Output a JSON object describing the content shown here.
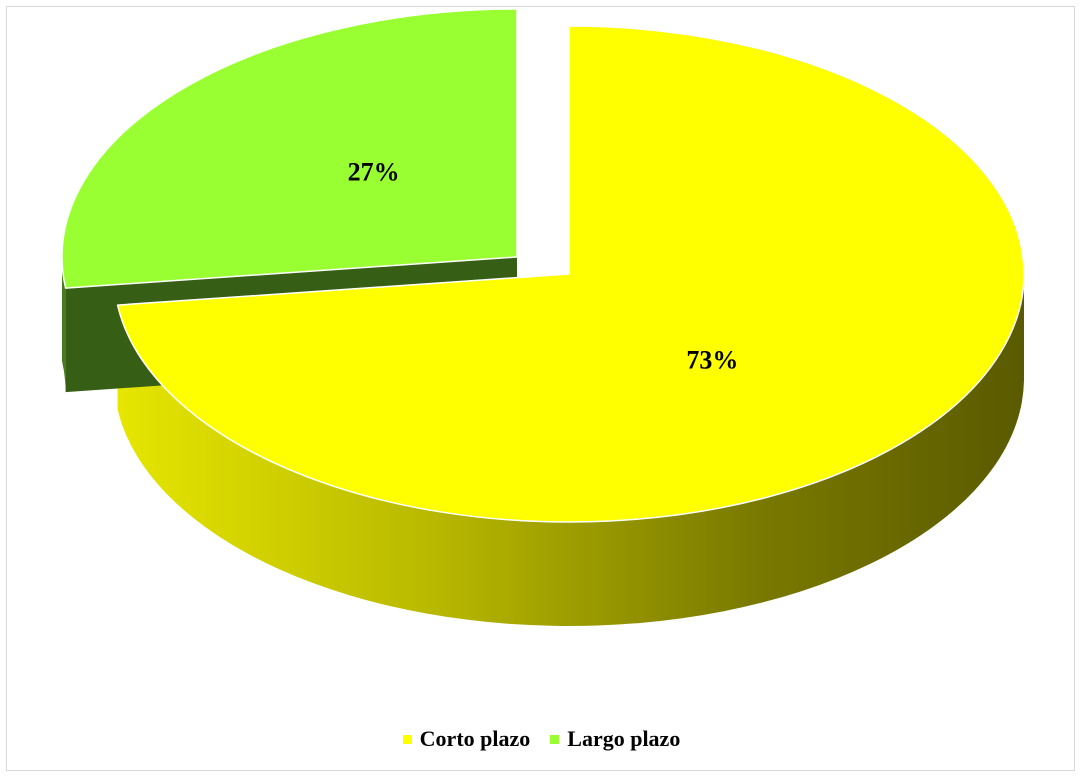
{
  "chart_data": {
    "type": "pie",
    "style": "3d-exploded",
    "categories": [
      "Corto plazo",
      "Largo plazo"
    ],
    "values": [
      73,
      27
    ],
    "labels": [
      "73%",
      "27%"
    ],
    "colors": {
      "Corto plazo": {
        "top": "#ffff00",
        "side_light": "#d9d900",
        "side_dark": "#5e5e00"
      },
      "Largo plazo": {
        "top": "#99ff33",
        "side_light": "#4a7a1f",
        "side_dark": "#375e15"
      }
    },
    "exploded": "Largo plazo",
    "start_angle_deg": 0,
    "legend_position": "bottom",
    "title": ""
  },
  "legend": {
    "items": [
      {
        "label": "Corto plazo",
        "color": "#ffff00"
      },
      {
        "label": "Largo plazo",
        "color": "#99ff33"
      }
    ]
  }
}
